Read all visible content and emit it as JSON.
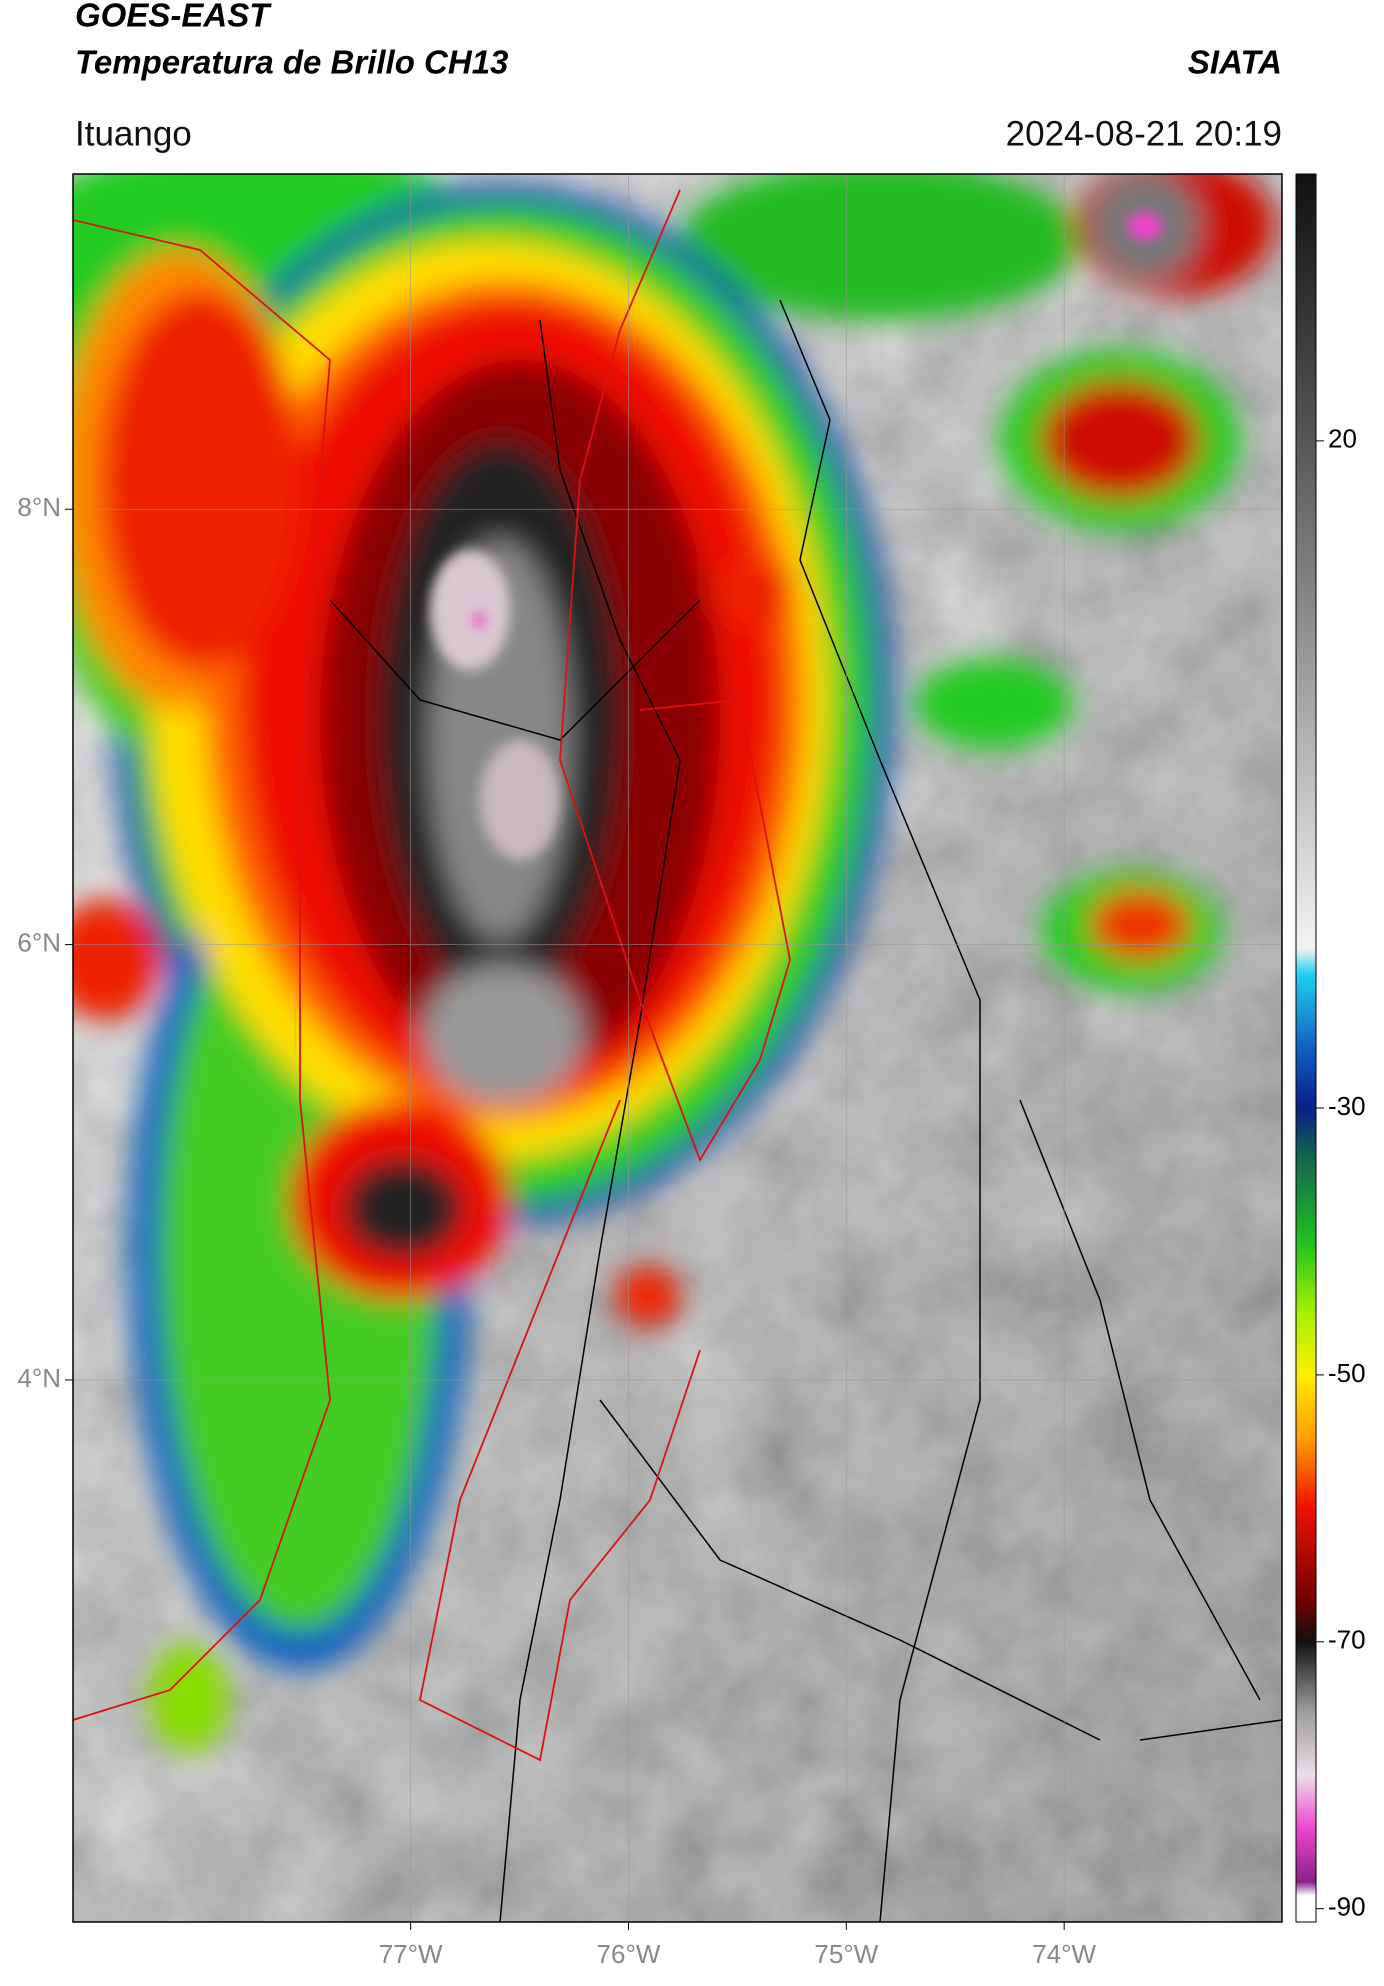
{
  "header": {
    "title": "GOES-EAST",
    "subtitle": "Temperatura de Brillo CH13",
    "source": "SIATA",
    "location": "Ituango",
    "timestamp": "2024-08-21 20:19"
  },
  "map": {
    "xlim": [
      -78.55,
      -73.0
    ],
    "ylim": [
      1.51,
      9.54
    ],
    "xticks": [
      {
        "value": -77,
        "label": "77°W"
      },
      {
        "value": -76,
        "label": "76°W"
      },
      {
        "value": -75,
        "label": "75°W"
      },
      {
        "value": -74,
        "label": "74°W"
      }
    ],
    "yticks": [
      {
        "value": 8,
        "label": "8°N"
      },
      {
        "value": 6,
        "label": "6°N"
      },
      {
        "value": 4,
        "label": "4°N"
      }
    ],
    "grid": true
  },
  "colorbar": {
    "lim": [
      -91,
      40
    ],
    "ticks": [
      20,
      -30,
      -50,
      -70,
      -90
    ]
  }
}
